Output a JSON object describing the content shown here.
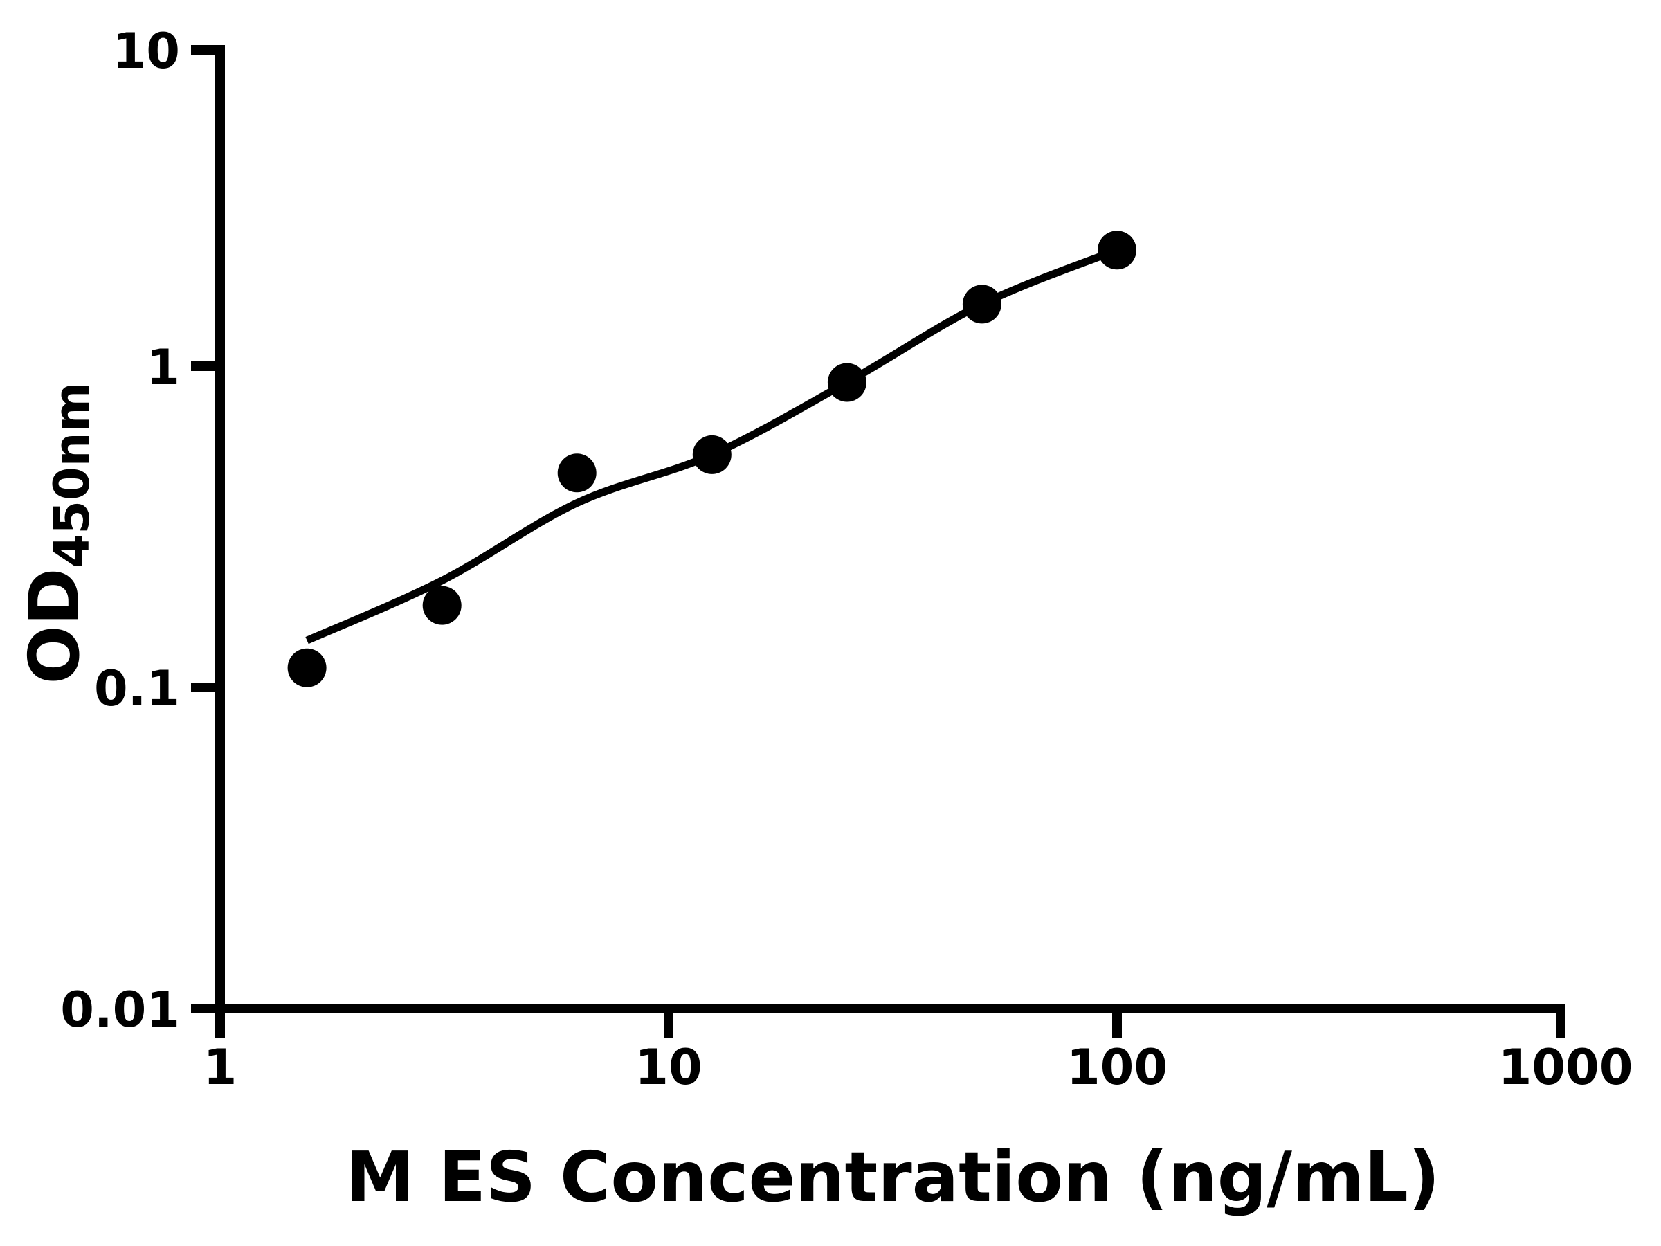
{
  "figure": {
    "background_color": "#ffffff",
    "ink_color": "#000000"
  },
  "chart_data": {
    "type": "scatter",
    "title": "",
    "xlabel": "M ES Concentration (ng/mL)",
    "ylabel_main": "OD",
    "ylabel_sub": "450nm",
    "x_scale": "log",
    "y_scale": "log",
    "xlim": [
      1,
      1000
    ],
    "ylim": [
      0.01,
      10
    ],
    "grid": false,
    "legend": "none",
    "x_ticks": [
      {
        "value": 1,
        "label": "1"
      },
      {
        "value": 10,
        "label": "10"
      },
      {
        "value": 100,
        "label": "100"
      },
      {
        "value": 1000,
        "label": "1000"
      }
    ],
    "y_ticks": [
      {
        "value": 10,
        "label": "10"
      },
      {
        "value": 1,
        "label": "1"
      },
      {
        "value": 0.1,
        "label": "0.1"
      },
      {
        "value": 0.01,
        "label": "0.01"
      }
    ],
    "series": [
      {
        "name": "standard-data-points",
        "type": "scatter",
        "marker": "filled-circle",
        "color": "#000000",
        "x": [
          1.5625,
          3.125,
          6.25,
          12.5,
          25,
          50,
          100
        ],
        "y": [
          0.115,
          0.18,
          0.465,
          0.53,
          0.89,
          1.56,
          2.3
        ]
      },
      {
        "name": "fitted-standard-curve",
        "type": "line",
        "color": "#000000",
        "x": [
          1.5625,
          3.125,
          6.25,
          12.5,
          25,
          50,
          100
        ],
        "y": [
          0.14,
          0.215,
          0.375,
          0.53,
          0.89,
          1.56,
          2.3
        ]
      }
    ]
  }
}
